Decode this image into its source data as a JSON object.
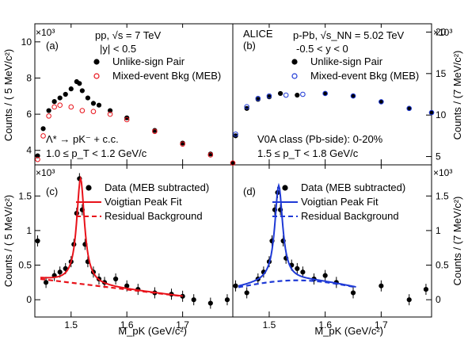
{
  "texts": {
    "ylabel_left_top": "Counts / ( 5 MeV/c²)",
    "ylabel_left_bottom": "Counts / ( 5 MeV/c²)",
    "ylabel_right_top": "Counts / (7 MeV/c²)",
    "ylabel_right_bottom": "Counts / (7 MeV/c²)",
    "xlabel_left": "M_pK (GeV/c²)",
    "xlabel_right": "M_pK (GeV/c²)",
    "exp_left_top": "×10³",
    "exp_left_bottom": "×10³",
    "exp_right_top": "×10³",
    "exp_right_bottom": "×10³",
    "a_label": "(a)",
    "a_system": "pp, √s = 7 TeV",
    "a_rapidity": "|y| < 0.5",
    "a_particle": "Λ* → pK⁻ + c.c.",
    "a_pt": "1.0 ≤ p_T < 1.2 GeV/c",
    "b_label": "(b)",
    "b_alice": "ALICE",
    "b_system": "p-Pb, √s_NN = 5.02 TeV",
    "b_rapidity": "-0.5 < y < 0",
    "b_class": "V0A class (Pb-side): 0-20%",
    "b_pt": "1.5 ≤ p_T < 1.8 GeV/c",
    "c_label": "(c)",
    "d_label": "(d)"
  },
  "chart_data": [
    {
      "panel": "a",
      "type": "scatter",
      "xlim": [
        1.435,
        1.79
      ],
      "ylim": [
        3.2,
        11.0
      ],
      "ytick_labels": [
        "4",
        "6",
        "8",
        "10"
      ],
      "series": [
        {
          "name": "Unlike-sign Pair",
          "marker": "filled-circle",
          "color": "#000000",
          "x": [
            1.44,
            1.45,
            1.46,
            1.47,
            1.48,
            1.49,
            1.5,
            1.51,
            1.515,
            1.52,
            1.53,
            1.54,
            1.55,
            1.57,
            1.6,
            1.65,
            1.7,
            1.75,
            1.79
          ],
          "y": [
            3.7,
            5.2,
            6.2,
            6.7,
            6.9,
            7.1,
            7.4,
            7.8,
            7.7,
            7.3,
            6.9,
            6.6,
            6.5,
            6.2,
            5.8,
            5.1,
            4.4,
            3.8,
            3.3
          ]
        },
        {
          "name": "Mixed-event Bkg (MEB)",
          "marker": "open-circle",
          "color": "#e8121a",
          "x": [
            1.44,
            1.45,
            1.46,
            1.47,
            1.48,
            1.5,
            1.52,
            1.54,
            1.57,
            1.6,
            1.65,
            1.7,
            1.75,
            1.79
          ],
          "y": [
            3.5,
            4.8,
            5.9,
            6.4,
            6.5,
            6.4,
            6.2,
            6.15,
            6.0,
            5.7,
            5.05,
            4.35,
            3.75,
            3.3
          ]
        }
      ]
    },
    {
      "panel": "b",
      "type": "scatter",
      "xlim": [
        1.435,
        1.79
      ],
      "ylim": [
        4.0,
        21.0
      ],
      "ytick_labels": [
        "5",
        "10",
        "15",
        "20"
      ],
      "series": [
        {
          "name": "Unlike-sign Pair",
          "marker": "filled-circle",
          "color": "#000000",
          "x": [
            1.44,
            1.46,
            1.48,
            1.5,
            1.52,
            1.55,
            1.6,
            1.65,
            1.7,
            1.75,
            1.79
          ],
          "y": [
            7.5,
            10.8,
            11.9,
            12.2,
            12.6,
            12.4,
            12.6,
            12.3,
            11.6,
            10.8,
            10.3
          ]
        },
        {
          "name": "Mixed-event Bkg (MEB)",
          "marker": "open-circle",
          "color": "#1f3ad6",
          "x": [
            1.44,
            1.46,
            1.48,
            1.5,
            1.53,
            1.56,
            1.6,
            1.65,
            1.7,
            1.75,
            1.79
          ],
          "y": [
            7.7,
            11.0,
            12.0,
            12.3,
            12.4,
            12.5,
            12.6,
            12.3,
            11.6,
            10.8,
            10.3
          ]
        }
      ]
    },
    {
      "panel": "c",
      "type": "line",
      "xlim": [
        1.435,
        1.79
      ],
      "ylim": [
        -0.25,
        1.95
      ],
      "ytick_labels": [
        "0",
        "0.5",
        "1",
        "1.5"
      ],
      "series": [
        {
          "name": "Data (MEB subtracted)",
          "marker": "filled-circle",
          "color": "#000000",
          "x": [
            1.44,
            1.455,
            1.47,
            1.48,
            1.49,
            1.5,
            1.505,
            1.51,
            1.515,
            1.52,
            1.525,
            1.53,
            1.54,
            1.55,
            1.56,
            1.58,
            1.6,
            1.62,
            1.65,
            1.68,
            1.7,
            1.72,
            1.75,
            1.78
          ],
          "y": [
            0.85,
            0.25,
            0.35,
            0.4,
            0.45,
            0.55,
            0.8,
            1.25,
            1.75,
            1.3,
            0.8,
            0.55,
            0.4,
            0.3,
            0.25,
            0.3,
            0.2,
            0.15,
            0.1,
            0.08,
            0.05,
            0.0,
            -0.05,
            0.0
          ]
        },
        {
          "name": "Voigtian Peak Fit",
          "line": "solid",
          "color": "#e8121a"
        },
        {
          "name": "Residual Background",
          "line": "dashed",
          "color": "#e8121a"
        }
      ]
    },
    {
      "panel": "d",
      "type": "line",
      "xlim": [
        1.435,
        1.79
      ],
      "ylim": [
        -0.25,
        1.95
      ],
      "ytick_labels": [
        "0",
        "0.5",
        "1",
        "1.5"
      ],
      "series": [
        {
          "name": "Data (MEB subtracted)",
          "marker": "filled-circle",
          "color": "#000000",
          "x": [
            1.44,
            1.46,
            1.48,
            1.49,
            1.5,
            1.505,
            1.51,
            1.515,
            1.52,
            1.525,
            1.53,
            1.54,
            1.55,
            1.56,
            1.58,
            1.6,
            1.62,
            1.65,
            1.7,
            1.75,
            1.78
          ],
          "y": [
            0.2,
            0.1,
            0.3,
            0.4,
            0.55,
            0.85,
            1.3,
            1.55,
            1.3,
            0.85,
            0.6,
            0.5,
            0.45,
            0.4,
            0.3,
            0.35,
            0.25,
            0.1,
            0.2,
            0.0,
            0.15
          ]
        },
        {
          "name": "Voigtian Peak Fit",
          "line": "solid",
          "color": "#1f3ad6"
        },
        {
          "name": "Residual Background",
          "line": "dashed",
          "color": "#1f3ad6"
        }
      ]
    }
  ],
  "x_tick_labels": [
    "1.5",
    "1.6",
    "1.7"
  ]
}
